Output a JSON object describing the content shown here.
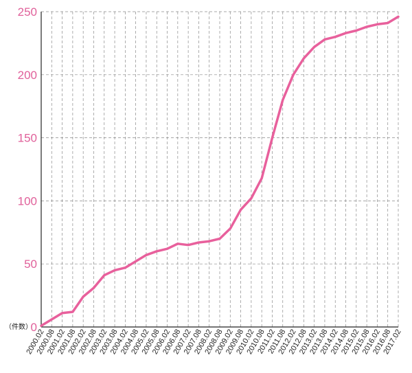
{
  "chart_data": {
    "type": "line",
    "unit_label": "（件数）",
    "ylim": [
      0,
      250
    ],
    "y_ticks": [
      0,
      50,
      100,
      150,
      200,
      250
    ],
    "grid": true,
    "x_tick_labels": [
      "2000.02",
      "2000.08",
      "2001.02",
      "2001.08",
      "2002.02",
      "2002.08",
      "2003.02",
      "2003.08",
      "2004.02",
      "2004.08",
      "2005.02",
      "2005.08",
      "2006.02",
      "2006.08",
      "2007.02",
      "2007.08",
      "2008.02",
      "2008.08",
      "2009.02",
      "2009.08",
      "2010.02",
      "2010.08",
      "2011.02",
      "2011.08",
      "2012.02",
      "2012.08",
      "2013.02",
      "2013.08",
      "2014.02",
      "2014.08",
      "2015.02",
      "2015.08",
      "2016.02",
      "2016.08",
      "2017.02"
    ],
    "series": [
      {
        "color": "#e8609c",
        "x": [
          "2000.02",
          "2000.08",
          "2001.02",
          "2001.08",
          "2002.02",
          "2002.08",
          "2003.02",
          "2003.08",
          "2004.02",
          "2004.08",
          "2005.02",
          "2005.08",
          "2006.02",
          "2006.08",
          "2007.02",
          "2007.08",
          "2008.02",
          "2008.08",
          "2009.02",
          "2009.08",
          "2010.02",
          "2010.08",
          "2011.02",
          "2011.08",
          "2012.02",
          "2012.08",
          "2013.02",
          "2013.08",
          "2014.02",
          "2014.08",
          "2015.02",
          "2015.08",
          "2016.02",
          "2016.08",
          "2017.02"
        ],
        "values": [
          1,
          6,
          11,
          12,
          24,
          31,
          41,
          45,
          47,
          52,
          57,
          60,
          62,
          66,
          65,
          67,
          68,
          70,
          78,
          93,
          102,
          118,
          150,
          180,
          200,
          213,
          222,
          228,
          230,
          233,
          235,
          238,
          240,
          241,
          246
        ]
      }
    ]
  }
}
